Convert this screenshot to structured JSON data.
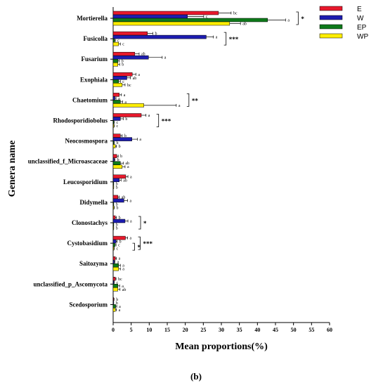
{
  "caption": "(b)",
  "chart_data": {
    "type": "bar",
    "orientation": "horizontal",
    "xlabel": "Mean proportions(%)",
    "ylabel": "Genera name",
    "xlim": [
      0,
      60
    ],
    "xticks": [
      0,
      5,
      10,
      15,
      20,
      25,
      30,
      35,
      40,
      45,
      50,
      55,
      60
    ],
    "grid": false,
    "legend_position": "top-right",
    "categories": [
      "Mortierella",
      "Fusicolla",
      "Fusarium",
      "Exophiala",
      "Chaetomium",
      "Rhodosporidiobolus",
      "Neocosmospora",
      "unclassified_f_Microascaceae",
      "Leucosporidium",
      "Didymella",
      "Clonostachys",
      "Cystobasidium",
      "Saitozyma",
      "unclassified_p_Ascomycota",
      "Scedosporium"
    ],
    "series": [
      {
        "name": "E",
        "color": "#e8192c",
        "values": [
          29.2,
          9.5,
          6.0,
          5.3,
          1.7,
          7.8,
          2.0,
          1.0,
          3.5,
          1.3,
          0.6,
          3.4,
          0.6,
          0.6,
          0.15
        ],
        "errors": [
          3.5,
          1.5,
          1.2,
          1.0,
          0.6,
          1.3,
          0.5,
          0.4,
          0.6,
          0.4,
          0.3,
          0.6,
          0.3,
          0.2,
          0.1
        ],
        "letters": [
          "bc",
          "b",
          "ab",
          "a",
          "a",
          "a",
          "b",
          "b",
          "a",
          "ab",
          "b",
          "a",
          "a",
          "bc",
          "b"
        ]
      },
      {
        "name": "W",
        "color": "#1d1db0",
        "values": [
          20.6,
          25.8,
          9.8,
          3.8,
          0.5,
          2.0,
          5.2,
          0.3,
          1.7,
          3.0,
          3.3,
          0.8,
          0.3,
          0.2,
          0.1
        ],
        "errors": [
          4.5,
          2.0,
          3.8,
          1.0,
          0.3,
          0.8,
          1.5,
          0.2,
          0.5,
          1.0,
          0.8,
          0.3,
          0.2,
          0.1,
          0.05
        ],
        "letters": [
          "c",
          "a",
          "a",
          "ab",
          "a",
          "b",
          "a",
          "b",
          "ab",
          "a",
          "a",
          "b",
          "a",
          "c",
          "b"
        ]
      },
      {
        "name": "EP",
        "color": "#0e7a1a",
        "values": [
          42.8,
          0.4,
          1.3,
          1.5,
          2.0,
          0.2,
          0.2,
          2.0,
          0.1,
          0.1,
          0.1,
          0.5,
          1.5,
          1.3,
          0.7
        ],
        "errors": [
          5.0,
          0.2,
          0.4,
          0.5,
          0.6,
          0.1,
          0.1,
          0.8,
          0.05,
          0.05,
          0.05,
          0.3,
          0.5,
          0.5,
          0.3
        ],
        "letters": [
          "a",
          "c",
          "b",
          "c",
          "a",
          "c",
          "b",
          "ab",
          "b",
          "b",
          "b",
          "c",
          "a",
          "a",
          "a"
        ]
      },
      {
        "name": "WP",
        "color": "#ffee00",
        "values": [
          32.3,
          1.5,
          1.3,
          2.5,
          8.5,
          0.2,
          0.6,
          2.5,
          0.1,
          0.2,
          0.1,
          0.2,
          1.5,
          1.3,
          0.6
        ],
        "errors": [
          3.0,
          0.5,
          0.5,
          0.8,
          9.0,
          0.1,
          0.3,
          0.8,
          0.05,
          0.1,
          0.05,
          0.1,
          0.5,
          0.6,
          0.3
        ],
        "letters": [
          "ab",
          "c",
          "b",
          "bc",
          "a",
          "c",
          "b",
          "a",
          "b",
          "b",
          "b",
          "c",
          "a",
          "ab",
          "a"
        ]
      }
    ],
    "significance": [
      {
        "category": "Mortierella",
        "mark": "*"
      },
      {
        "category": "Fusicolla",
        "mark": "***"
      },
      {
        "category": "Chaetomium",
        "mark": "**"
      },
      {
        "category": "Rhodosporidiobolus",
        "mark": "***"
      },
      {
        "category": "Clonostachys",
        "mark": "*"
      },
      {
        "category": "Cystobasidium",
        "mark": "***"
      },
      {
        "category": "Cystobasidium",
        "mark": "*"
      }
    ]
  }
}
